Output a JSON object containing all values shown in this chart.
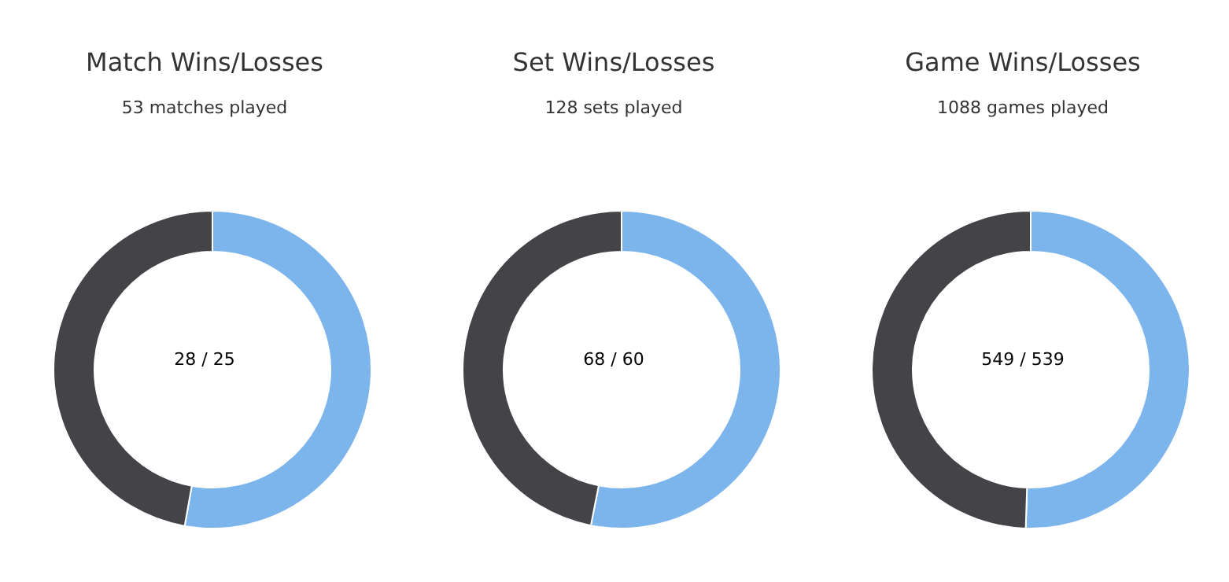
{
  "chart_data": [
    {
      "type": "donut",
      "title": "Match Wins/Losses",
      "subtitle": "53 matches played",
      "categories": [
        null,
        null
      ],
      "values": [
        52.8,
        47.2
      ],
      "colors": [
        "#7cb5ec",
        "#434348"
      ],
      "annotations": [
        "28 / 25"
      ],
      "legend": false
    },
    {
      "type": "donut",
      "title": "Set Wins/Losses",
      "subtitle": "128 sets played",
      "categories": [
        null,
        null
      ],
      "values": [
        53.1,
        46.9
      ],
      "colors": [
        "#7cb5ec",
        "#434348"
      ],
      "annotations": [
        "68 / 60"
      ],
      "legend": false
    },
    {
      "type": "donut",
      "title": "Game Wins/Losses",
      "subtitle": "1088 games played",
      "categories": [
        null,
        null
      ],
      "values": [
        50.5,
        49.5
      ],
      "colors": [
        "#7cb5ec",
        "#434348"
      ],
      "annotations": [
        "549 / 539"
      ],
      "legend": false
    }
  ]
}
